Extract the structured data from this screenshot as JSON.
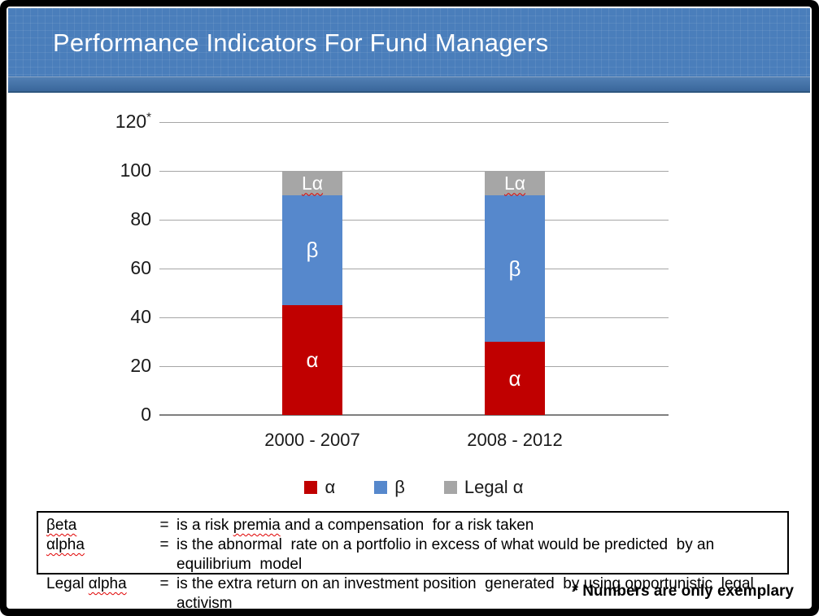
{
  "slide": {
    "title": "Performance Indicators For Fund Managers"
  },
  "chart_data": {
    "type": "bar",
    "stacked": true,
    "categories": [
      "2000 - 2007",
      "2008 - 2012"
    ],
    "series": [
      {
        "name": "α",
        "bar_label": "α",
        "color": "#C00000",
        "values": [
          45,
          30
        ]
      },
      {
        "name": "β",
        "bar_label": "β",
        "color": "#5688CC",
        "values": [
          45,
          60
        ]
      },
      {
        "name": "Legal α",
        "bar_label": "Lα",
        "color": "#A6A6A6",
        "values": [
          10,
          10
        ],
        "label_wavy": true
      }
    ],
    "title": "",
    "xlabel": "",
    "ylabel": "",
    "ylim": [
      0,
      120
    ],
    "yticks": [
      0,
      20,
      40,
      60,
      80,
      100,
      120
    ],
    "axis_note": "*",
    "grid": true,
    "legend_position": "bottom"
  },
  "definitions": {
    "rows": [
      {
        "term": [
          {
            "text": "βeta",
            "wavy": true
          }
        ],
        "eq": "=",
        "desc": [
          {
            "text": "is a risk "
          },
          {
            "text": "premia",
            "wavy": true
          },
          {
            "text": " and a compensation  for a risk taken"
          }
        ]
      },
      {
        "term": [
          {
            "text": "αlpha",
            "wavy": true
          }
        ],
        "eq": "=",
        "desc": [
          {
            "text": "is the abnormal  rate on a portfolio in excess of what would be predicted  by an equilibrium  model"
          }
        ]
      },
      {
        "term": [
          {
            "text": "Legal "
          },
          {
            "text": "αlpha",
            "wavy": true
          }
        ],
        "eq": "=",
        "desc": [
          {
            "text": "is the extra return on an investment position  generated  by using opportunistic  legal activism"
          }
        ]
      }
    ]
  },
  "footnote": "* Numbers are only exemplary",
  "colors": {
    "header_blue": "#4A7EBB",
    "header_strip_dark": "#3A679B",
    "alpha_red": "#C00000",
    "beta_blue": "#5688CC",
    "legal_alpha_gray": "#A6A6A6",
    "gridline_gray": "#A6A6A6",
    "axis_gray": "#7F7F7F"
  }
}
